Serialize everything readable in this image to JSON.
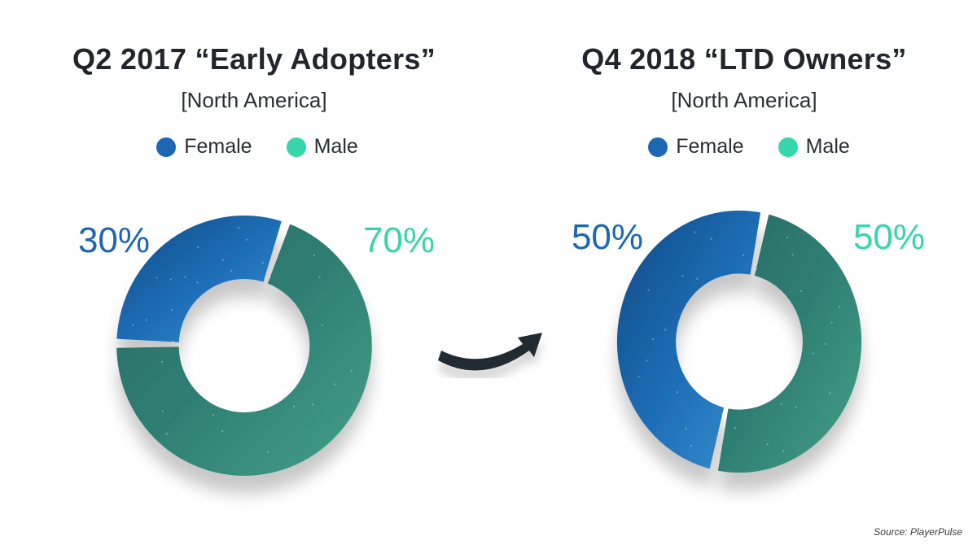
{
  "colors": {
    "female": "#1c67b3",
    "male": "#35d6a9",
    "text_dark": "#22252b"
  },
  "source_text": "Source: PlayerPulse",
  "chart_data": [
    {
      "type": "pie",
      "title": "Q2 2017 “Early Adopters”",
      "subtitle": "[North America]",
      "categories": [
        "Female",
        "Male"
      ],
      "values": [
        30,
        70
      ],
      "labels": [
        "30%",
        "70%"
      ],
      "colors": [
        "#1c67b3",
        "#35d6a9"
      ],
      "legend_position": "top"
    },
    {
      "type": "pie",
      "title": "Q4 2018 “LTD Owners”",
      "subtitle": "[North America]",
      "categories": [
        "Female",
        "Male"
      ],
      "values": [
        50,
        50
      ],
      "labels": [
        "50%",
        "50%"
      ],
      "colors": [
        "#1c67b3",
        "#35d6a9"
      ],
      "legend_position": "top"
    }
  ]
}
